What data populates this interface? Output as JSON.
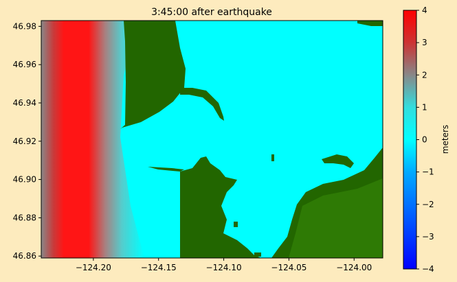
{
  "chart_data": {
    "type": "heatmap",
    "title": "3:45:00 after earthquake",
    "xlim": [
      -124.24,
      -123.978
    ],
    "ylim": [
      46.859,
      46.983
    ],
    "x_ticks": [
      -124.2,
      -124.15,
      -124.1,
      -124.05,
      -124.0
    ],
    "x_tick_labels": [
      "−124.20",
      "−124.15",
      "−124.10",
      "−124.05",
      "−124.00"
    ],
    "y_ticks": [
      46.86,
      46.88,
      46.9,
      46.92,
      46.94,
      46.96,
      46.98
    ],
    "y_tick_labels": [
      "46.86",
      "46.88",
      "46.90",
      "46.92",
      "46.94",
      "46.96",
      "46.98"
    ],
    "colorbar": {
      "label": "meters",
      "range": [
        -4,
        4
      ],
      "ticks": [
        -4,
        -3,
        -2,
        -1,
        0,
        1,
        2,
        3,
        4
      ],
      "tick_labels": [
        "−4",
        "−3",
        "−2",
        "−1",
        "0",
        "1",
        "2",
        "3",
        "4"
      ],
      "colormap": [
        {
          "value": -4,
          "color": "#0000ff"
        },
        {
          "value": -1,
          "color": "#00aaff"
        },
        {
          "value": 0,
          "color": "#00ffff"
        },
        {
          "value": 1,
          "color": "#33dddd"
        },
        {
          "value": 2,
          "color": "#888888"
        },
        {
          "value": 3,
          "color": "#cc3333"
        },
        {
          "value": 4,
          "color": "#ff0000"
        }
      ]
    },
    "surface_height_field": {
      "description_units": "meters",
      "offshore_max": 4,
      "nearshore_min": 0
    },
    "land_color": "#226600",
    "water_color": "#00ffff"
  }
}
